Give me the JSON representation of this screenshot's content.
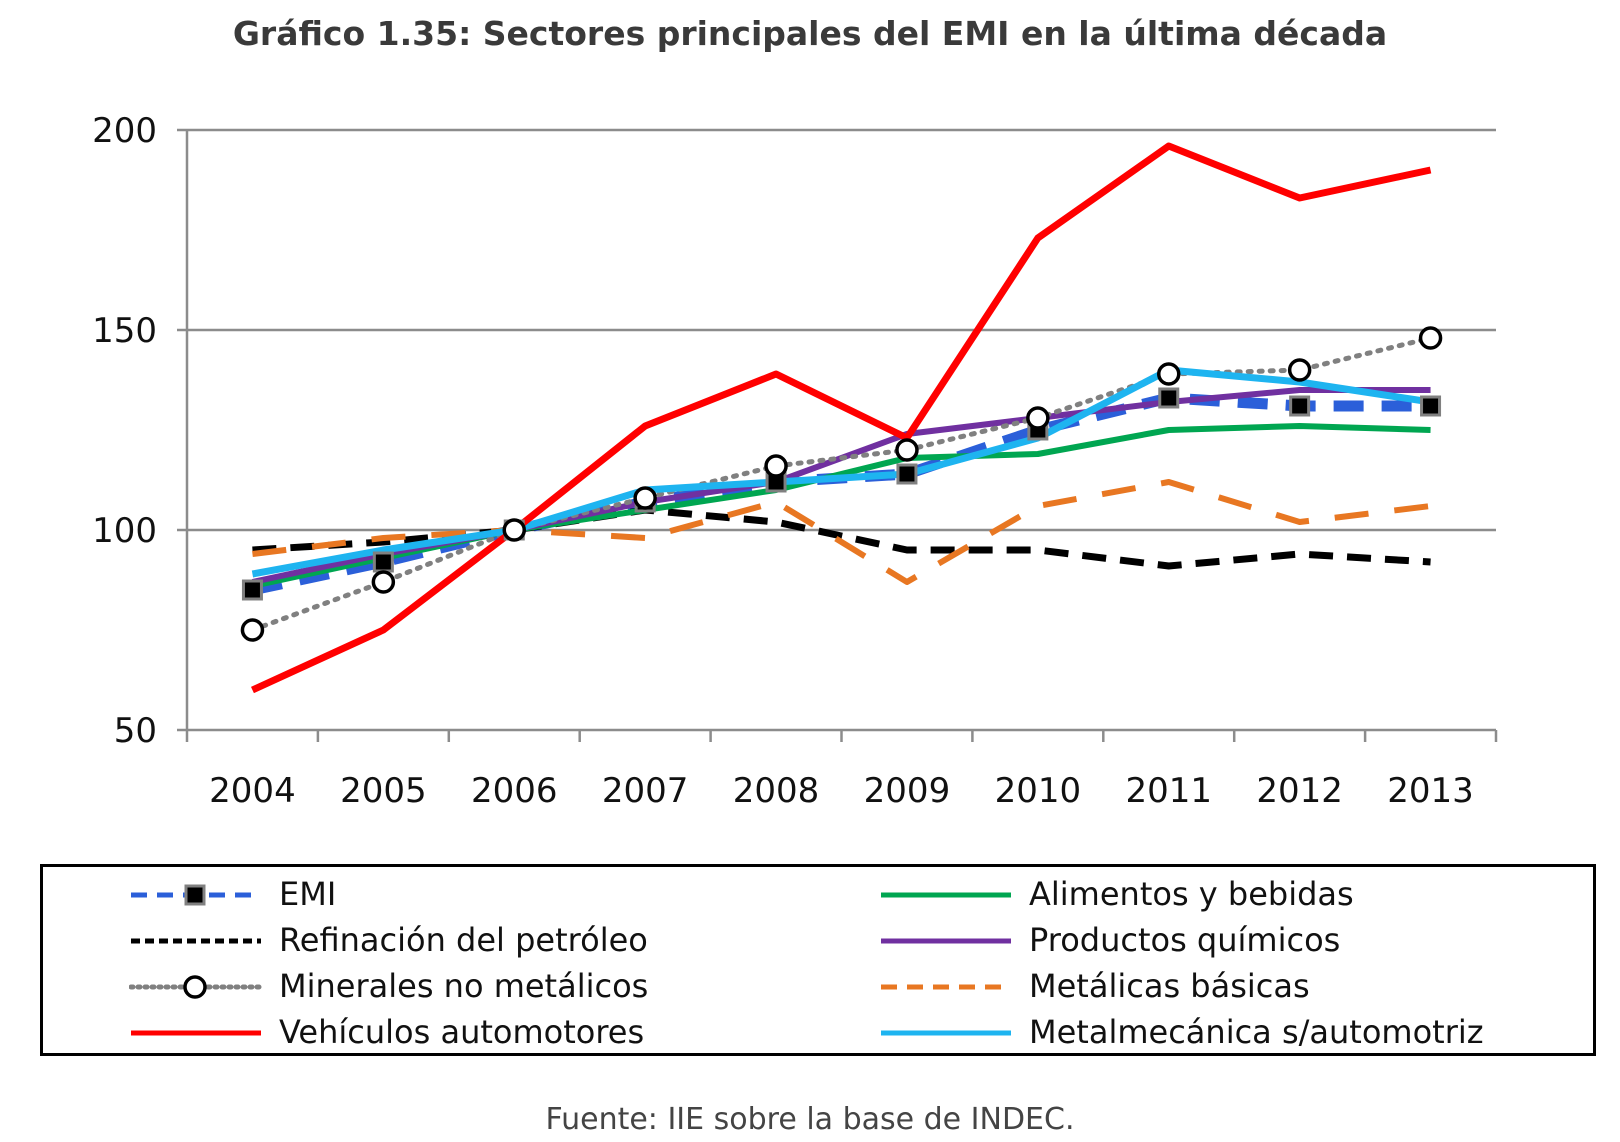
{
  "chart_data": {
    "type": "line",
    "title": "Gráfico 1.35: Sectores principales del EMI en la última década",
    "source": "Fuente: IIE sobre la base de INDEC.",
    "x": [
      "2004",
      "2005",
      "2006",
      "2007",
      "2008",
      "2009",
      "2010",
      "2011",
      "2012",
      "2013"
    ],
    "ylim": [
      50,
      200
    ],
    "yticks": [
      50,
      100,
      150,
      200
    ],
    "grid": true,
    "legend_position": "bottom",
    "series": [
      {
        "name": "EMI",
        "color": "#2b5fd9",
        "style": "dashed-square",
        "values": [
          85,
          92,
          100,
          107,
          112,
          114,
          125,
          133,
          131,
          131
        ]
      },
      {
        "name": "Alimentos y bebidas",
        "color": "#00a651",
        "style": "solid",
        "values": [
          86,
          93,
          100,
          105,
          110,
          118,
          119,
          125,
          126,
          125
        ]
      },
      {
        "name": "Refinación del petróleo",
        "color": "#000000",
        "style": "dashed",
        "values": [
          95,
          97,
          100,
          105,
          102,
          95,
          95,
          91,
          94,
          92
        ]
      },
      {
        "name": "Productos químicos",
        "color": "#7030a0",
        "style": "solid",
        "values": [
          87,
          94,
          100,
          107,
          112,
          124,
          128,
          132,
          135,
          135
        ]
      },
      {
        "name": "Minerales no metálicos",
        "color": "#808080",
        "style": "dotted-circle",
        "values": [
          75,
          87,
          100,
          108,
          116,
          120,
          128,
          139,
          140,
          148
        ]
      },
      {
        "name": "Metálicas básicas",
        "color": "#e87722",
        "style": "dashed",
        "values": [
          94,
          98,
          100,
          98,
          107,
          87,
          106,
          112,
          102,
          106
        ]
      },
      {
        "name": "Vehículos automotores",
        "color": "#ff0000",
        "style": "solid",
        "values": [
          60,
          75,
          100,
          126,
          139,
          123,
          173,
          196,
          183,
          190
        ]
      },
      {
        "name": "Metalmecánica s/automotriz",
        "color": "#1eb4f0",
        "style": "solid",
        "values": [
          89,
          95,
          100,
          110,
          112,
          114,
          123,
          140,
          137,
          132
        ]
      }
    ]
  }
}
